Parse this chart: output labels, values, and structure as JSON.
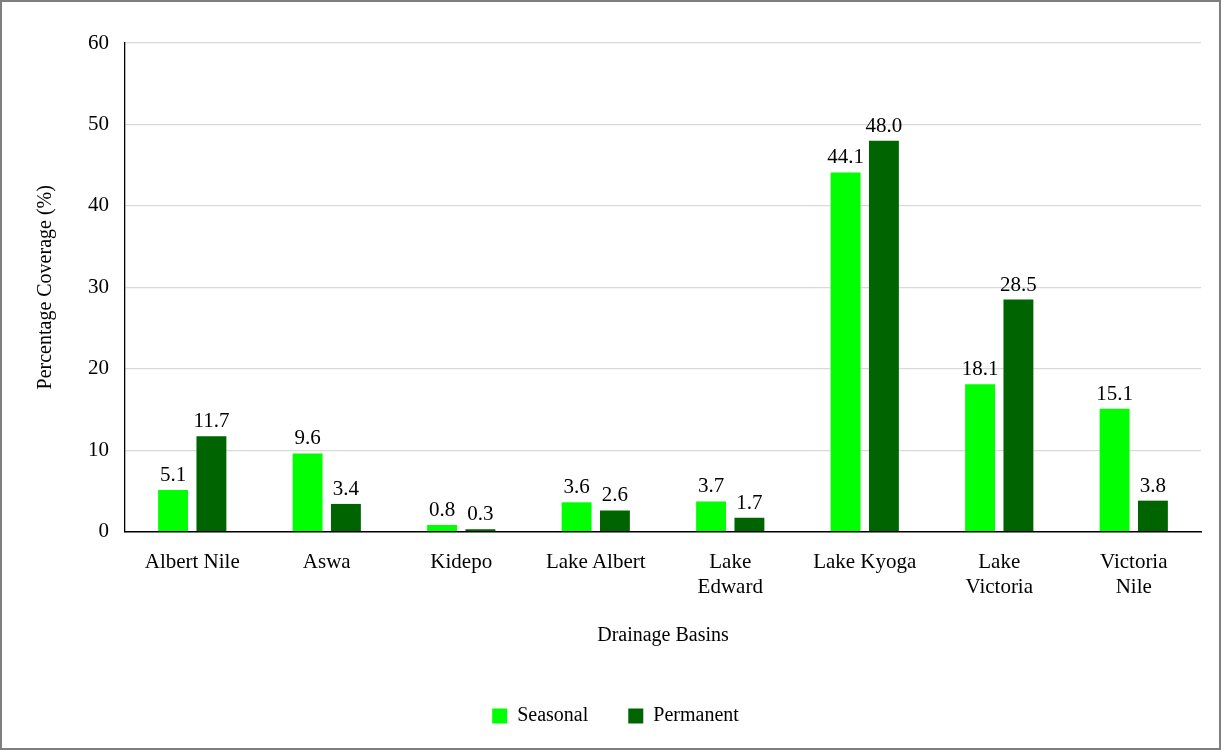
{
  "chart_data": {
    "type": "bar",
    "xlabel": "Drainage Basins",
    "ylabel": "Percentage Coverage (%)",
    "categories": [
      "Albert Nile",
      "Aswa",
      "Kidepo",
      "Lake Albert",
      "Lake Edward",
      "Lake Kyoga",
      "Lake Victoria",
      "Victoria Nile"
    ],
    "series": [
      {
        "name": "Seasonal",
        "color": "#00ff00",
        "values": [
          5.1,
          9.6,
          0.8,
          3.6,
          3.7,
          44.1,
          18.1,
          15.1
        ],
        "value_labels": [
          "5.1",
          "9.6",
          "0.8",
          "3.6",
          "3.7",
          "44.1",
          "18.1",
          "15.1"
        ]
      },
      {
        "name": "Permanent",
        "color": "#006400",
        "values": [
          11.7,
          3.4,
          0.3,
          2.6,
          1.7,
          48.0,
          28.5,
          3.8
        ],
        "value_labels": [
          "11.7",
          "3.4",
          "0.3",
          "2.6",
          "1.7",
          "48.0",
          "28.5",
          "3.8"
        ]
      }
    ],
    "ylim": [
      0,
      60
    ],
    "yticks": [
      0,
      10,
      20,
      30,
      40,
      50,
      60
    ],
    "grid": "y",
    "legend": "bottom"
  }
}
